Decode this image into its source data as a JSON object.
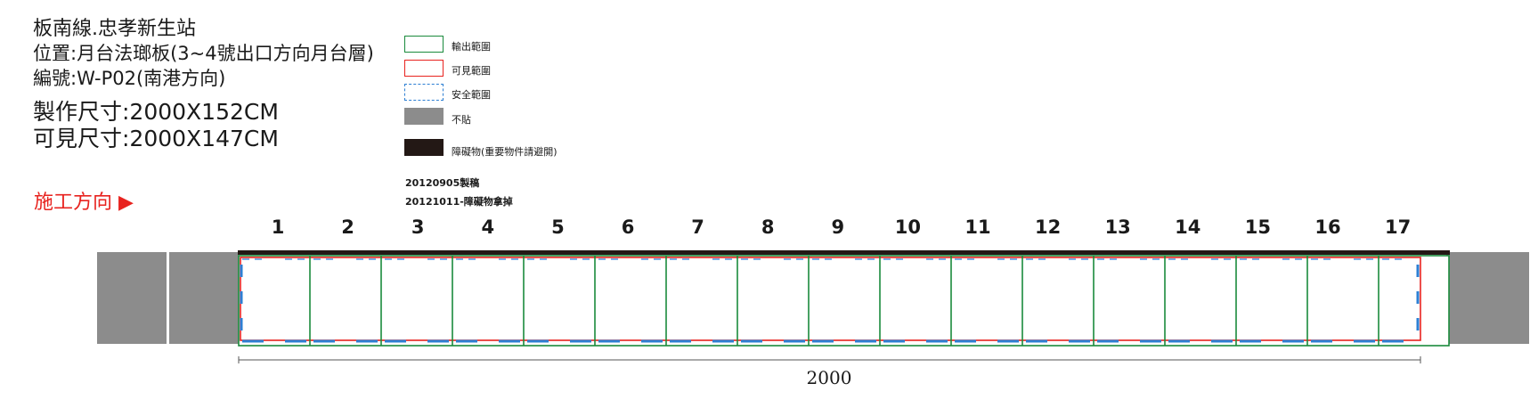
{
  "header": {
    "line_name": "板南線.忠孝新生站",
    "location": "位置:月台法瑯板(3~4號出口方向月台層)",
    "code": "編號:W-P02(南港方向)",
    "production_size": "製作尺寸:2000X152CM",
    "visible_size": "可見尺寸:2000X147CM"
  },
  "direction_label": "施工方向 ▶",
  "legend": {
    "output_range": "輸出範圍",
    "visible_range": "可見範圍",
    "safe_range": "安全範圍",
    "no_paste": "不貼",
    "obstacle": "障礙物(重要物件請避開)"
  },
  "revisions": [
    "20120905製稿",
    "20121011-障礙物拿掉"
  ],
  "panels": [
    "1",
    "2",
    "3",
    "4",
    "5",
    "6",
    "7",
    "8",
    "9",
    "10",
    "11",
    "12",
    "13",
    "14",
    "15",
    "16",
    "17"
  ],
  "dimension_label": "2000",
  "colors": {
    "output": "#1a8a3c",
    "visible": "#e8231f",
    "safe": "#2d7fd3",
    "no_paste": "#8c8c8c",
    "obstacle": "#231815"
  },
  "icons": {
    "direction_arrow": "right-triangle"
  }
}
